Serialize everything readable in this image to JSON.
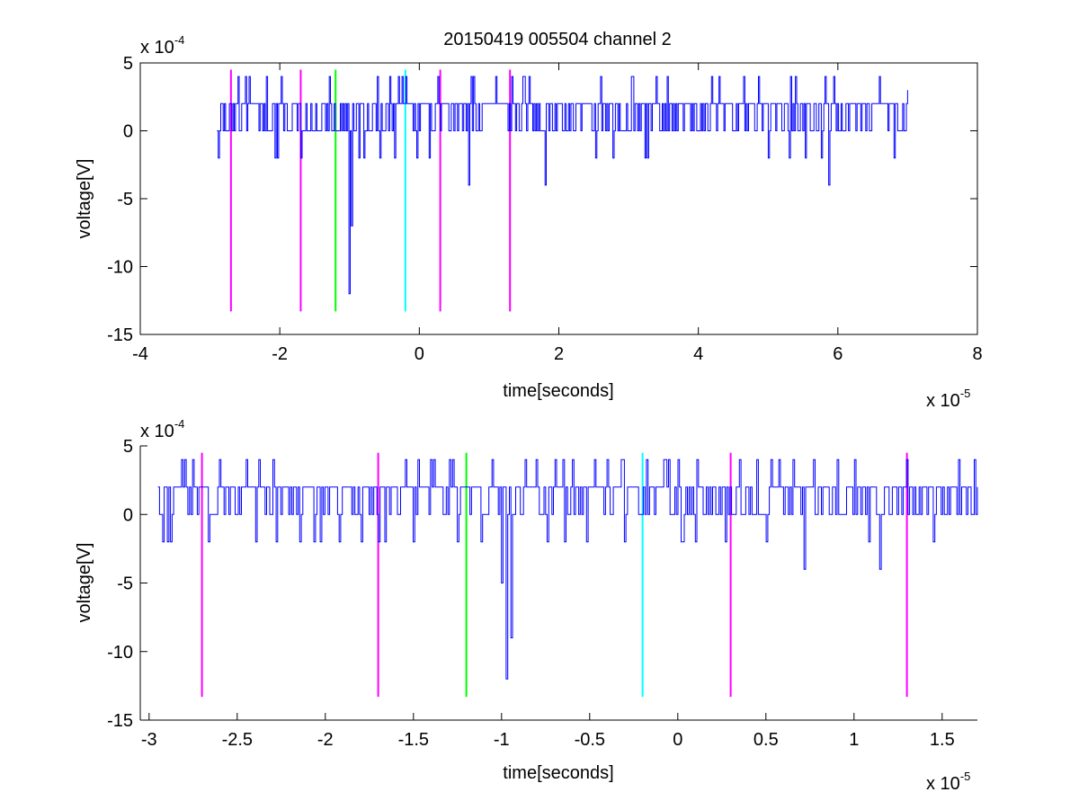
{
  "figure_title": "20150419 005504 channel 2",
  "colors": {
    "signal": "#0000ff",
    "magenta": "#ff00ff",
    "green": "#00ff00",
    "cyan": "#00ffff",
    "axes": "#000000"
  },
  "chart_data": [
    {
      "type": "line",
      "title": "20150419 005504 channel 2",
      "xlabel": "time[seconds]",
      "ylabel": "voltage[V]",
      "x_multiplier": "x 10",
      "x_exponent": "-5",
      "y_multiplier": "x 10",
      "y_exponent": "-4",
      "xlim": [
        -4,
        8
      ],
      "ylim": [
        -15,
        5
      ],
      "xticks": [
        -4,
        -2,
        0,
        2,
        4,
        6,
        8
      ],
      "xtick_labels": [
        "-4",
        "-2",
        "0",
        "2",
        "4",
        "6",
        "8"
      ],
      "yticks": [
        -15,
        -10,
        -5,
        0,
        5
      ],
      "ytick_labels": [
        "-15",
        "-10",
        "-5",
        "0",
        "5"
      ],
      "grid": false,
      "signal": {
        "x_range": [
          -2.9,
          7.0
        ],
        "baseline_levels": [
          0,
          2
        ],
        "spikes": [
          {
            "x": -2.88,
            "y": -2
          },
          {
            "x": -2.6,
            "y": 4
          },
          {
            "x": -2.2,
            "y": 4
          },
          {
            "x": -1.7,
            "y": -2
          },
          {
            "x": -1.3,
            "y": 4
          },
          {
            "x": -1.0,
            "y": -12
          },
          {
            "x": -0.98,
            "y": -7
          },
          {
            "x": -0.6,
            "y": 4
          },
          {
            "x": -0.2,
            "y": 4
          },
          {
            "x": 0.7,
            "y": -4
          },
          {
            "x": 1.1,
            "y": 4
          },
          {
            "x": 1.8,
            "y": -4
          },
          {
            "x": 2.6,
            "y": 4
          },
          {
            "x": 3.4,
            "y": 4
          },
          {
            "x": 4.3,
            "y": 4
          },
          {
            "x": 5.4,
            "y": 4
          },
          {
            "x": 5.87,
            "y": -4
          },
          {
            "x": 6.6,
            "y": 4
          },
          {
            "x": 7.0,
            "y": 3
          }
        ]
      },
      "markers": [
        {
          "x": -2.7,
          "color": "magenta",
          "y_range": [
            -13.3,
            4.5
          ]
        },
        {
          "x": -1.7,
          "color": "magenta",
          "y_range": [
            -13.3,
            4.5
          ]
        },
        {
          "x": -1.2,
          "color": "green",
          "y_range": [
            -13.3,
            4.5
          ]
        },
        {
          "x": -0.2,
          "color": "cyan",
          "y_range": [
            -13.3,
            4.5
          ]
        },
        {
          "x": 0.3,
          "color": "magenta",
          "y_range": [
            -13.3,
            4.5
          ]
        },
        {
          "x": 1.3,
          "color": "magenta",
          "y_range": [
            -13.3,
            4.5
          ]
        }
      ]
    },
    {
      "type": "line",
      "title": "",
      "xlabel": "time[seconds]",
      "ylabel": "voltage[V]",
      "x_multiplier": "x 10",
      "x_exponent": "-5",
      "y_multiplier": "x 10",
      "y_exponent": "-4",
      "xlim": [
        -3.05,
        1.7
      ],
      "ylim": [
        -15,
        5
      ],
      "xticks": [
        -3,
        -2.5,
        -2,
        -1.5,
        -1,
        -0.5,
        0,
        0.5,
        1,
        1.5
      ],
      "xtick_labels": [
        "-3",
        "-2.5",
        "-2",
        "-1.5",
        "-1",
        "-0.5",
        "0",
        "0.5",
        "1",
        "1.5"
      ],
      "yticks": [
        -15,
        -10,
        -5,
        0,
        5
      ],
      "ytick_labels": [
        "-15",
        "-10",
        "-5",
        "0",
        "5"
      ],
      "grid": false,
      "signal": {
        "x_range": [
          -2.95,
          1.7
        ],
        "baseline_levels": [
          0,
          2
        ],
        "spikes": [
          {
            "x": -2.9,
            "y": -2
          },
          {
            "x": -2.88,
            "y": -2
          },
          {
            "x": -2.8,
            "y": 4
          },
          {
            "x": -2.75,
            "y": 4
          },
          {
            "x": -2.45,
            "y": 4
          },
          {
            "x": -2.4,
            "y": -2
          },
          {
            "x": -2.3,
            "y": 4
          },
          {
            "x": -2.28,
            "y": -2
          },
          {
            "x": -1.7,
            "y": -2
          },
          {
            "x": -1.55,
            "y": 4
          },
          {
            "x": -1.5,
            "y": -2
          },
          {
            "x": -1.4,
            "y": 4
          },
          {
            "x": -1.3,
            "y": 4
          },
          {
            "x": -1.25,
            "y": -2
          },
          {
            "x": -1.12,
            "y": -2
          },
          {
            "x": -1.05,
            "y": 4
          },
          {
            "x": -1.0,
            "y": -5
          },
          {
            "x": -0.97,
            "y": -12
          },
          {
            "x": -0.95,
            "y": -9
          },
          {
            "x": -0.8,
            "y": 4
          },
          {
            "x": -0.7,
            "y": 4
          },
          {
            "x": -0.65,
            "y": 4
          },
          {
            "x": -0.6,
            "y": 4
          },
          {
            "x": -0.52,
            "y": -2
          },
          {
            "x": -0.4,
            "y": 4
          },
          {
            "x": -0.3,
            "y": -2
          },
          {
            "x": -0.07,
            "y": 4
          },
          {
            "x": 0.0,
            "y": 4
          },
          {
            "x": 0.1,
            "y": -2
          },
          {
            "x": 0.35,
            "y": 4
          },
          {
            "x": 0.45,
            "y": 4
          },
          {
            "x": 0.5,
            "y": -2
          },
          {
            "x": 0.65,
            "y": 4
          },
          {
            "x": 0.72,
            "y": -4
          },
          {
            "x": 0.9,
            "y": 4
          },
          {
            "x": 1.0,
            "y": 4
          },
          {
            "x": 1.15,
            "y": -4
          },
          {
            "x": 1.3,
            "y": 4
          },
          {
            "x": 1.45,
            "y": -2
          },
          {
            "x": 1.5,
            "y": 2
          }
        ]
      },
      "markers": [
        {
          "x": -2.7,
          "color": "magenta",
          "y_range": [
            -13.3,
            4.5
          ]
        },
        {
          "x": -1.7,
          "color": "magenta",
          "y_range": [
            -13.3,
            4.5
          ]
        },
        {
          "x": -1.2,
          "color": "green",
          "y_range": [
            -13.3,
            4.5
          ]
        },
        {
          "x": -0.2,
          "color": "cyan",
          "y_range": [
            -13.3,
            4.5
          ]
        },
        {
          "x": 0.3,
          "color": "magenta",
          "y_range": [
            -13.3,
            4.5
          ]
        },
        {
          "x": 1.3,
          "color": "magenta",
          "y_range": [
            -13.3,
            4.5
          ]
        }
      ]
    }
  ]
}
